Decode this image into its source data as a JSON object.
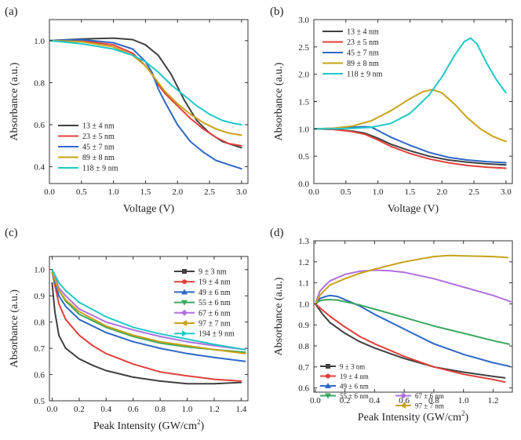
{
  "chart_data": [
    {
      "panel": "(a)",
      "type": "line",
      "xlabel": "Voltage (V)",
      "ylabel": "Absorbance (a.u.)",
      "xlim": [
        0.0,
        3.1
      ],
      "ylim": [
        0.32,
        1.1
      ],
      "xticks": [
        0.0,
        0.5,
        1.0,
        1.5,
        2.0,
        2.5,
        3.0
      ],
      "xtick_labels": [
        "0.0",
        "0.5",
        "1.0",
        "1.5",
        "2.0",
        "2.5",
        "3.0"
      ],
      "yticks": [
        0.4,
        0.6,
        0.8,
        1.0
      ],
      "ytick_labels": [
        "0.4",
        "0.6",
        "0.8",
        "1.0"
      ],
      "legend_position": "bottom-left",
      "series": [
        {
          "name": "13 ± 4 nm",
          "color": "#404040",
          "x": [
            0,
            0.5,
            1.0,
            1.3,
            1.5,
            1.7,
            1.9,
            2.1,
            2.3,
            2.5,
            2.7,
            3.0
          ],
          "y": [
            1.0,
            1.008,
            1.012,
            1.005,
            0.98,
            0.93,
            0.84,
            0.72,
            0.62,
            0.56,
            0.52,
            0.49
          ]
        },
        {
          "name": "23 ± 5 nm",
          "color": "#e0403a",
          "x": [
            0,
            0.5,
            1.0,
            1.3,
            1.5,
            1.6,
            1.7,
            1.8,
            2.0,
            2.2,
            2.4,
            2.6,
            2.8,
            3.0
          ],
          "y": [
            1.0,
            1.0,
            0.98,
            0.94,
            0.88,
            0.84,
            0.79,
            0.75,
            0.69,
            0.63,
            0.58,
            0.54,
            0.51,
            0.5
          ]
        },
        {
          "name": "45 ± 7 nm",
          "color": "#2f68c8",
          "x": [
            0,
            0.5,
            1.0,
            1.3,
            1.5,
            1.6,
            1.7,
            1.8,
            2.0,
            2.2,
            2.4,
            2.6,
            2.8,
            3.0
          ],
          "y": [
            1.0,
            1.005,
            0.99,
            0.96,
            0.9,
            0.85,
            0.77,
            0.71,
            0.6,
            0.52,
            0.47,
            0.43,
            0.41,
            0.39
          ]
        },
        {
          "name": "89 ± 8 nm",
          "color": "#c9a21a",
          "x": [
            0,
            0.5,
            1.0,
            1.3,
            1.5,
            1.6,
            1.7,
            1.8,
            2.0,
            2.2,
            2.4,
            2.6,
            2.8,
            3.0
          ],
          "y": [
            1.0,
            0.995,
            0.97,
            0.93,
            0.88,
            0.84,
            0.8,
            0.76,
            0.7,
            0.65,
            0.61,
            0.58,
            0.56,
            0.55
          ]
        },
        {
          "name": "118 ± 9 nm",
          "color": "#1fc8c8",
          "x": [
            0,
            0.5,
            1.0,
            1.3,
            1.5,
            1.7,
            1.9,
            2.1,
            2.3,
            2.5,
            2.7,
            2.9,
            3.0
          ],
          "y": [
            1.0,
            0.985,
            0.96,
            0.93,
            0.9,
            0.85,
            0.79,
            0.74,
            0.69,
            0.65,
            0.62,
            0.605,
            0.6
          ]
        }
      ]
    },
    {
      "panel": "(b)",
      "type": "line",
      "xlabel": "Voltage (V)",
      "ylabel": "Absorbance (a.u.)",
      "xlim": [
        0.0,
        3.1
      ],
      "ylim": [
        0.0,
        3.0
      ],
      "xticks": [
        0.0,
        0.5,
        1.0,
        1.5,
        2.0,
        2.5,
        3.0
      ],
      "xtick_labels": [
        "0.0",
        "0.5",
        "1.0",
        "1.5",
        "2.0",
        "2.5",
        "3.0"
      ],
      "yticks": [
        0.0,
        0.5,
        1.0,
        1.5,
        2.0,
        2.5,
        3.0
      ],
      "ytick_labels": [
        "0.0",
        "0.5",
        "1.0",
        "1.5",
        "2.0",
        "2.5",
        "3.0"
      ],
      "legend_position": "top-left",
      "series": [
        {
          "name": "13 ± 4 nm",
          "color": "#404040",
          "x": [
            0,
            0.3,
            0.6,
            0.8,
            1.0,
            1.2,
            1.5,
            1.8,
            2.1,
            2.4,
            2.7,
            3.0
          ],
          "y": [
            1.0,
            0.99,
            0.96,
            0.92,
            0.83,
            0.72,
            0.6,
            0.5,
            0.43,
            0.39,
            0.36,
            0.34
          ]
        },
        {
          "name": "23 ± 5 nm",
          "color": "#e0403a",
          "x": [
            0,
            0.3,
            0.6,
            0.8,
            1.0,
            1.2,
            1.5,
            1.8,
            2.1,
            2.4,
            2.7,
            3.0
          ],
          "y": [
            1.0,
            0.99,
            0.95,
            0.9,
            0.8,
            0.68,
            0.55,
            0.45,
            0.38,
            0.33,
            0.3,
            0.28
          ]
        },
        {
          "name": "45 ± 7 nm",
          "color": "#2f68c8",
          "x": [
            0,
            0.3,
            0.6,
            0.8,
            0.9,
            1.0,
            1.2,
            1.5,
            1.8,
            2.1,
            2.4,
            2.7,
            3.0
          ],
          "y": [
            1.0,
            1.01,
            1.03,
            1.04,
            1.03,
            0.97,
            0.85,
            0.7,
            0.57,
            0.48,
            0.43,
            0.4,
            0.38
          ]
        },
        {
          "name": "89 ± 8 nm",
          "color": "#c9a21a",
          "x": [
            0,
            0.3,
            0.6,
            0.9,
            1.2,
            1.5,
            1.7,
            1.85,
            2.0,
            2.2,
            2.4,
            2.6,
            2.8,
            3.0
          ],
          "y": [
            1.0,
            1.01,
            1.05,
            1.15,
            1.33,
            1.55,
            1.68,
            1.72,
            1.66,
            1.45,
            1.2,
            1.0,
            0.86,
            0.77
          ]
        },
        {
          "name": "118 ± 9 nm",
          "color": "#1fc8c8",
          "x": [
            0,
            0.3,
            0.6,
            0.9,
            1.2,
            1.5,
            1.8,
            2.0,
            2.2,
            2.35,
            2.45,
            2.55,
            2.7,
            2.85,
            3.0
          ],
          "y": [
            1.0,
            1.0,
            1.01,
            1.03,
            1.1,
            1.28,
            1.62,
            1.95,
            2.35,
            2.6,
            2.66,
            2.55,
            2.2,
            1.9,
            1.66
          ]
        }
      ]
    },
    {
      "panel": "(c)",
      "type": "line",
      "xlabel": "Peak Intensity (GW/cm",
      "xlabel_sup": "2",
      "xlabel_end": ")",
      "ylabel": "Absorbance (a.u.)",
      "xlim": [
        -0.02,
        1.45
      ],
      "ylim": [
        0.5,
        1.05
      ],
      "xticks": [
        0.0,
        0.2,
        0.4,
        0.6,
        0.8,
        1.0,
        1.2,
        1.4
      ],
      "xtick_labels": [
        "0.0",
        "0.2",
        "0.4",
        "0.6",
        "0.8",
        "1.0",
        "1.2",
        "1.4"
      ],
      "yticks": [
        0.5,
        0.6,
        0.7,
        0.8,
        0.9,
        1.0
      ],
      "ytick_labels": [
        "0.5",
        "0.6",
        "0.7",
        "0.8",
        "0.9",
        "1.0"
      ],
      "legend_position": "top-right",
      "series": [
        {
          "name": "9 ± 3 nm",
          "color": "#404040",
          "marker": "square",
          "x": [
            0,
            0.02,
            0.05,
            0.1,
            0.2,
            0.3,
            0.4,
            0.6,
            0.8,
            1.0,
            1.2,
            1.4
          ],
          "y": [
            0.95,
            0.84,
            0.75,
            0.7,
            0.66,
            0.635,
            0.615,
            0.59,
            0.575,
            0.565,
            0.565,
            0.57
          ]
        },
        {
          "name": "19 ± 4 nm",
          "color": "#e0403a",
          "marker": "circle",
          "x": [
            0,
            0.05,
            0.1,
            0.2,
            0.3,
            0.4,
            0.6,
            0.8,
            1.0,
            1.2,
            1.4
          ],
          "y": [
            0.99,
            0.87,
            0.81,
            0.75,
            0.71,
            0.68,
            0.64,
            0.61,
            0.595,
            0.582,
            0.575
          ]
        },
        {
          "name": "49 ± 6 nm",
          "color": "#2f68c8",
          "marker": "triangle",
          "x": [
            0,
            0.05,
            0.1,
            0.2,
            0.4,
            0.6,
            0.8,
            1.0,
            1.2,
            1.43
          ],
          "y": [
            0.99,
            0.9,
            0.86,
            0.81,
            0.76,
            0.725,
            0.7,
            0.68,
            0.665,
            0.65
          ]
        },
        {
          "name": "55 ± 6 nm",
          "color": "#3aa860",
          "marker": "triangle-down",
          "x": [
            0,
            0.05,
            0.1,
            0.2,
            0.4,
            0.6,
            0.8,
            1.0,
            1.2,
            1.43
          ],
          "y": [
            0.99,
            0.92,
            0.88,
            0.83,
            0.78,
            0.745,
            0.72,
            0.705,
            0.695,
            0.685
          ]
        },
        {
          "name": "67 ± 6 nm",
          "color": "#b070e0",
          "marker": "diamond",
          "x": [
            0,
            0.05,
            0.1,
            0.2,
            0.4,
            0.6,
            0.8,
            1.0,
            1.2,
            1.43
          ],
          "y": [
            1.0,
            0.93,
            0.9,
            0.85,
            0.8,
            0.77,
            0.745,
            0.725,
            0.71,
            0.695
          ]
        },
        {
          "name": "97 ± 7 nm",
          "color": "#c9a21a",
          "marker": "triangle-left",
          "x": [
            0,
            0.05,
            0.1,
            0.2,
            0.4,
            0.6,
            0.8,
            1.0,
            1.2,
            1.43
          ],
          "y": [
            0.99,
            0.92,
            0.885,
            0.84,
            0.785,
            0.75,
            0.725,
            0.71,
            0.695,
            0.68
          ]
        },
        {
          "name": "194 ± 9 nm",
          "color": "#1fc8c8",
          "marker": "triangle-right",
          "x": [
            0,
            0.05,
            0.1,
            0.2,
            0.4,
            0.6,
            0.8,
            1.0,
            1.2,
            1.43
          ],
          "y": [
            1.0,
            0.95,
            0.92,
            0.875,
            0.82,
            0.78,
            0.755,
            0.735,
            0.715,
            0.695
          ]
        }
      ]
    },
    {
      "panel": "(d)",
      "type": "line",
      "xlabel": "Peak Intensity (GW/cm",
      "xlabel_sup": "2",
      "xlabel_end": ")",
      "ylabel": "Absorbance (a.u.)",
      "xlim": [
        -0.01,
        1.33
      ],
      "ylim": [
        0.58,
        1.3
      ],
      "xticks": [
        0.0,
        0.2,
        0.4,
        0.6,
        0.8,
        1.0,
        1.2
      ],
      "xtick_labels": [
        "0.0",
        "0.2",
        "0.4",
        "0.6",
        "0.8",
        "1.0",
        "1.2"
      ],
      "yticks": [
        0.6,
        0.7,
        0.8,
        0.9,
        1.0,
        1.1,
        1.2,
        1.3
      ],
      "ytick_labels": [
        "0.6",
        "0.7",
        "0.8",
        "0.9",
        "1.0",
        "1.1",
        "1.2",
        "1.3"
      ],
      "legend_position": "bottom-left",
      "series": [
        {
          "name": "9 ± 3 nm",
          "color": "#404040",
          "marker": "square",
          "x": [
            0,
            0.05,
            0.1,
            0.2,
            0.3,
            0.4,
            0.6,
            0.8,
            1.0,
            1.2,
            1.28
          ],
          "y": [
            1.0,
            0.95,
            0.91,
            0.86,
            0.82,
            0.79,
            0.74,
            0.7,
            0.675,
            0.655,
            0.648
          ]
        },
        {
          "name": "19 ± 4 nm",
          "color": "#e0403a",
          "marker": "circle",
          "x": [
            0,
            0.05,
            0.1,
            0.2,
            0.3,
            0.4,
            0.6,
            0.8,
            1.0,
            1.2,
            1.28
          ],
          "y": [
            1.0,
            0.97,
            0.94,
            0.89,
            0.845,
            0.81,
            0.75,
            0.7,
            0.665,
            0.64,
            0.628
          ]
        },
        {
          "name": "49 ± 6 nm",
          "color": "#2f68c8",
          "marker": "triangle",
          "x": [
            0,
            0.03,
            0.07,
            0.1,
            0.15,
            0.2,
            0.3,
            0.4,
            0.6,
            0.8,
            1.0,
            1.2,
            1.31
          ],
          "y": [
            1.0,
            1.025,
            1.035,
            1.04,
            1.035,
            1.02,
            0.99,
            0.95,
            0.88,
            0.81,
            0.76,
            0.72,
            0.703
          ]
        },
        {
          "name": "55 ± 6 nm",
          "color": "#3aa860",
          "marker": "triangle-down",
          "x": [
            0,
            0.03,
            0.07,
            0.1,
            0.15,
            0.2,
            0.3,
            0.4,
            0.6,
            0.8,
            1.0,
            1.2,
            1.31
          ],
          "y": [
            1.0,
            1.015,
            1.02,
            1.02,
            1.018,
            1.01,
            0.995,
            0.975,
            0.935,
            0.895,
            0.86,
            0.825,
            0.808
          ]
        },
        {
          "name": "67 ± 6 nm",
          "color": "#b070e0",
          "marker": "diamond",
          "x": [
            0,
            0.03,
            0.07,
            0.1,
            0.2,
            0.3,
            0.4,
            0.5,
            0.6,
            0.8,
            1.0,
            1.2,
            1.32
          ],
          "y": [
            1.0,
            1.06,
            1.09,
            1.11,
            1.14,
            1.155,
            1.16,
            1.158,
            1.15,
            1.12,
            1.08,
            1.04,
            1.01
          ]
        },
        {
          "name": "97 ± 7 nm",
          "color": "#c9a21a",
          "marker": "triangle-left",
          "x": [
            0,
            0.03,
            0.07,
            0.1,
            0.2,
            0.3,
            0.4,
            0.6,
            0.8,
            0.9,
            1.0,
            1.2,
            1.3
          ],
          "y": [
            1.0,
            1.04,
            1.07,
            1.09,
            1.12,
            1.145,
            1.165,
            1.2,
            1.225,
            1.23,
            1.228,
            1.225,
            1.22
          ]
        }
      ]
    }
  ]
}
